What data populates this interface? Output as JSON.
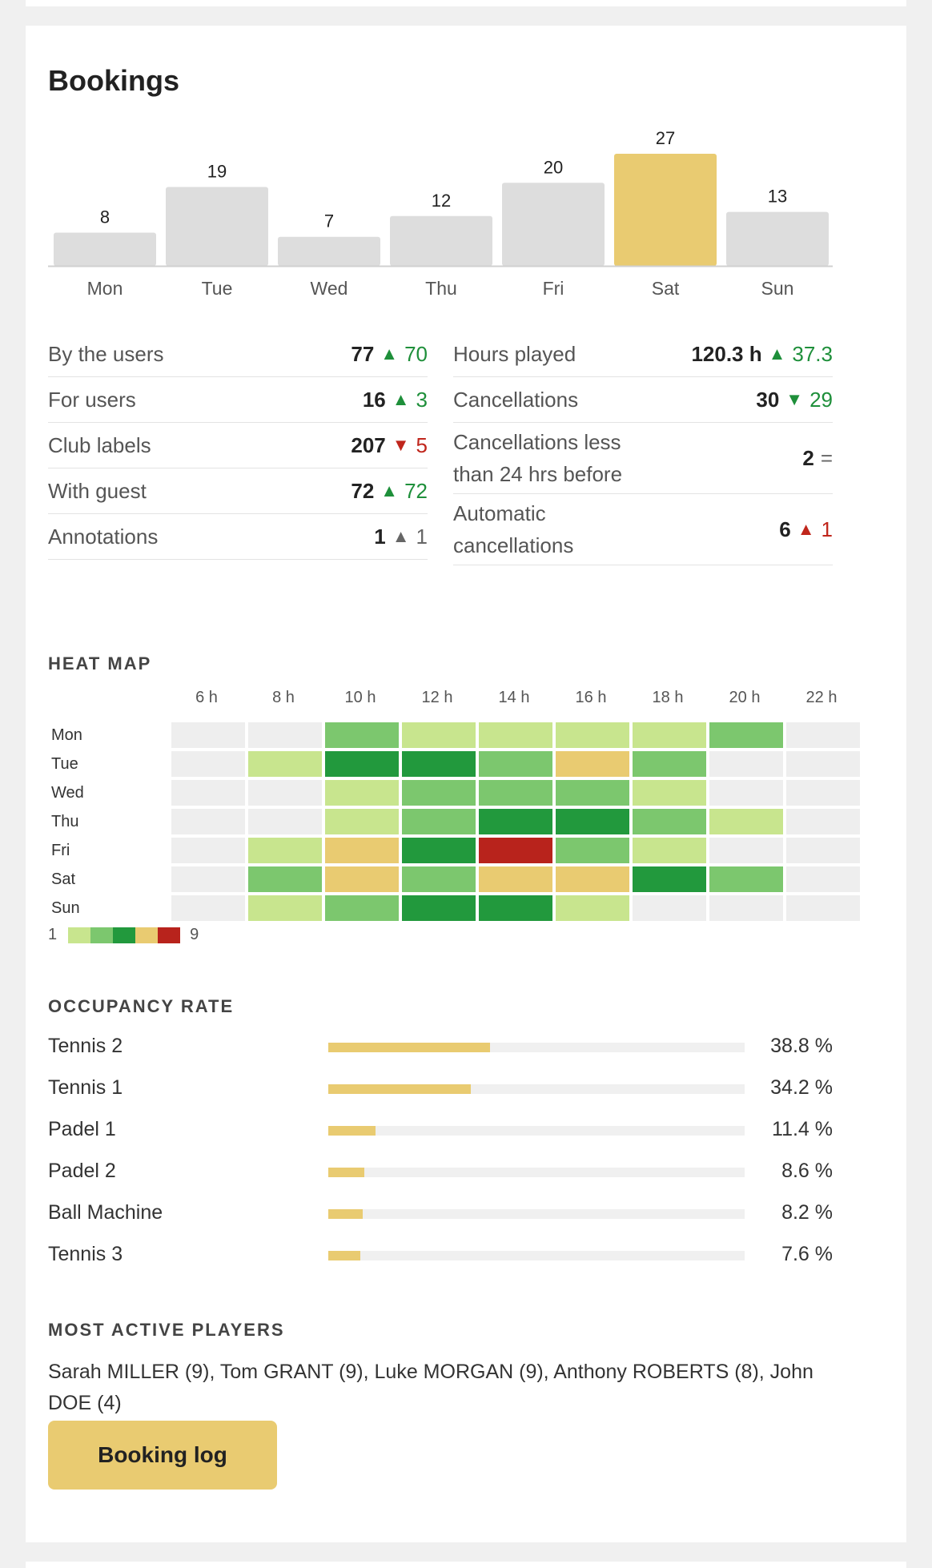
{
  "title": "Bookings",
  "colors": {
    "bar_default": "#dddddd",
    "bar_highlight": "#e9cb71",
    "good": "#1e8f3a",
    "bad": "#c0261c"
  },
  "chart_data": {
    "type": "bar",
    "categories": [
      "Mon",
      "Tue",
      "Wed",
      "Thu",
      "Fri",
      "Sat",
      "Sun"
    ],
    "values": [
      8,
      19,
      7,
      12,
      20,
      27,
      13
    ],
    "highlight": "Sat",
    "title": "",
    "xlabel": "",
    "ylabel": ""
  },
  "stats": {
    "left": [
      {
        "label": "By the users",
        "value": "77",
        "trend": "up",
        "tone": "good",
        "delta": "70"
      },
      {
        "label": "For users",
        "value": "16",
        "trend": "up",
        "tone": "good",
        "delta": "3"
      },
      {
        "label": "Club labels",
        "value": "207",
        "trend": "down",
        "tone": "bad",
        "delta": "5"
      },
      {
        "label": "With guest",
        "value": "72",
        "trend": "up",
        "tone": "good",
        "delta": "72"
      },
      {
        "label": "Annotations",
        "value": "1",
        "trend": "up",
        "tone": "neutral",
        "delta": "1"
      }
    ],
    "right": [
      {
        "label": "Hours played",
        "value": "120.3 h",
        "trend": "up",
        "tone": "good",
        "delta": "37.3"
      },
      {
        "label": "Cancellations",
        "value": "30",
        "trend": "down",
        "tone": "good",
        "delta": "29"
      },
      {
        "label": "Cancellations less than 24 hrs before",
        "value": "2",
        "trend": "equal",
        "tone": "neutral",
        "delta": "="
      },
      {
        "label": "Automatic cancellations",
        "value": "6",
        "trend": "up",
        "tone": "bad",
        "delta": "1"
      }
    ]
  },
  "heatmap": {
    "title": "HEAT MAP",
    "hours": [
      "6 h",
      "8 h",
      "10 h",
      "12 h",
      "14 h",
      "16 h",
      "18 h",
      "20 h",
      "22 h"
    ],
    "days": [
      "Mon",
      "Tue",
      "Wed",
      "Thu",
      "Fri",
      "Sat",
      "Sun"
    ],
    "levels": [
      [
        0,
        0,
        2,
        1,
        1,
        1,
        1,
        2,
        0
      ],
      [
        0,
        1,
        3,
        3,
        2,
        4,
        2,
        0,
        0
      ],
      [
        0,
        0,
        1,
        2,
        2,
        2,
        1,
        0,
        0
      ],
      [
        0,
        0,
        1,
        2,
        3,
        3,
        2,
        1,
        0
      ],
      [
        0,
        1,
        4,
        3,
        5,
        2,
        1,
        0,
        0
      ],
      [
        0,
        2,
        4,
        2,
        4,
        4,
        3,
        2,
        0
      ],
      [
        0,
        1,
        2,
        3,
        3,
        1,
        0,
        0,
        0
      ]
    ],
    "palette": [
      "#eeeeee",
      "#c8e58e",
      "#7cc76e",
      "#22993d",
      "#e9cb71",
      "#b8231c"
    ],
    "legend_min": "1",
    "legend_max": "9"
  },
  "occupancy": {
    "title": "OCCUPANCY RATE",
    "rows": [
      {
        "name": "Tennis 2",
        "pct_label": "38.8 %",
        "fraction": 0.388
      },
      {
        "name": "Tennis 1",
        "pct_label": "34.2 %",
        "fraction": 0.342
      },
      {
        "name": "Padel 1",
        "pct_label": "11.4 %",
        "fraction": 0.114
      },
      {
        "name": "Padel 2",
        "pct_label": "8.6 %",
        "fraction": 0.086
      },
      {
        "name": "Ball Machine",
        "pct_label": "8.2 %",
        "fraction": 0.082
      },
      {
        "name": "Tennis 3",
        "pct_label": "7.6 %",
        "fraction": 0.076
      }
    ]
  },
  "players": {
    "title": "MOST ACTIVE PLAYERS",
    "text": "Sarah MILLER (9), Tom GRANT (9), Luke MORGAN (9), Anthony ROBERTS (8), John DOE (4)"
  },
  "booking_log_label": "Booking log"
}
